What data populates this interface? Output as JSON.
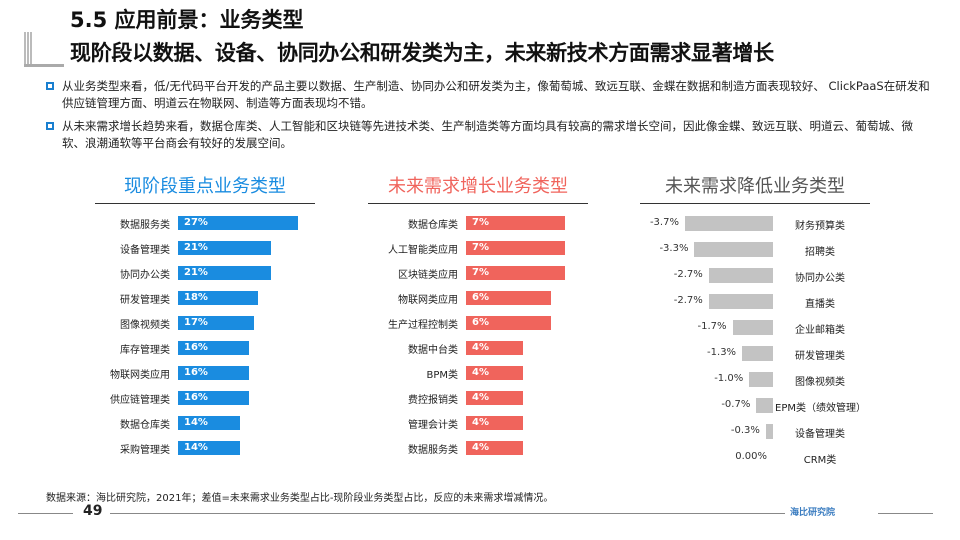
{
  "header": {
    "title": "5.5 应用前景：业务类型",
    "subtitle": "现阶段以数据、设备、协同办公和研发类为主，未来新技术方面需求显著增长"
  },
  "bullets": [
    "从业务类型来看，低/无代码平台开发的产品主要以数据、生产制造、协同办公和研发类为主，像葡萄城、致远互联、金蝶在数据和制造方面表现较好、 ClickPaaS在研发和供应链管理方面、明道云在物联网、制造等方面表现均不错。",
    "从未来需求增长趋势来看，数据仓库类、人工智能和区块链等先进技术类、生产制造类等方面均具有较高的需求增长空间，因此像金蝶、致远互联、明道云、葡萄城、微软、浪潮通软等平台商会有较好的发展空间。"
  ],
  "colors": {
    "blue": "#1a8ce0",
    "red": "#f0645c",
    "gray": "#c3c3c3"
  },
  "chart_data": [
    {
      "type": "bar",
      "title": "现阶段重点业务类型",
      "categories": [
        "数据服务类",
        "设备管理类",
        "协同办公类",
        "研发管理类",
        "图像视频类",
        "库存管理类",
        "物联网类应用",
        "供应链管理类",
        "数据仓库类",
        "采购管理类"
      ],
      "values": [
        27,
        21,
        21,
        18,
        17,
        16,
        16,
        16,
        14,
        14
      ],
      "labels": [
        "27%",
        "21%",
        "21%",
        "18%",
        "17%",
        "16%",
        "16%",
        "16%",
        "14%",
        "14%"
      ],
      "unit": "%"
    },
    {
      "type": "bar",
      "title": "未来需求增长业务类型",
      "categories": [
        "数据仓库类",
        "人工智能类应用",
        "区块链类应用",
        "物联网类应用",
        "生产过程控制类",
        "数据中台类",
        "BPM类",
        "费控报销类",
        "管理会计类",
        "数据服务类"
      ],
      "values": [
        7,
        7,
        7,
        6,
        6,
        4,
        4,
        4,
        4,
        4
      ],
      "labels": [
        "7%",
        "7%",
        "7%",
        "6%",
        "6%",
        "4%",
        "4%",
        "4%",
        "4%",
        "4%"
      ],
      "unit": "%"
    },
    {
      "type": "bar",
      "title": "未来需求降低业务类型",
      "categories": [
        "财务预算类",
        "招聘类",
        "协同办公类",
        "直播类",
        "企业邮箱类",
        "研发管理类",
        "图像视频类",
        "EPM类（绩效管理）",
        "设备管理类",
        "CRM类"
      ],
      "values": [
        -3.7,
        -3.3,
        -2.7,
        -2.7,
        -1.7,
        -1.3,
        -1.0,
        -0.7,
        -0.3,
        0
      ],
      "labels": [
        "-3.7%",
        "-3.3%",
        "-2.7%",
        "-2.7%",
        "-1.7%",
        "-1.3%",
        "-1.0%",
        "-0.7%",
        "-0.3%",
        "0.00%"
      ],
      "unit": "%"
    }
  ],
  "footer": {
    "source": "数据来源：海比研究院，2021年；差值=未来需求业务类型占比-现阶段业务类型占比，反应的未来需求增减情况。",
    "page": "49",
    "logo": "海比研究院"
  }
}
